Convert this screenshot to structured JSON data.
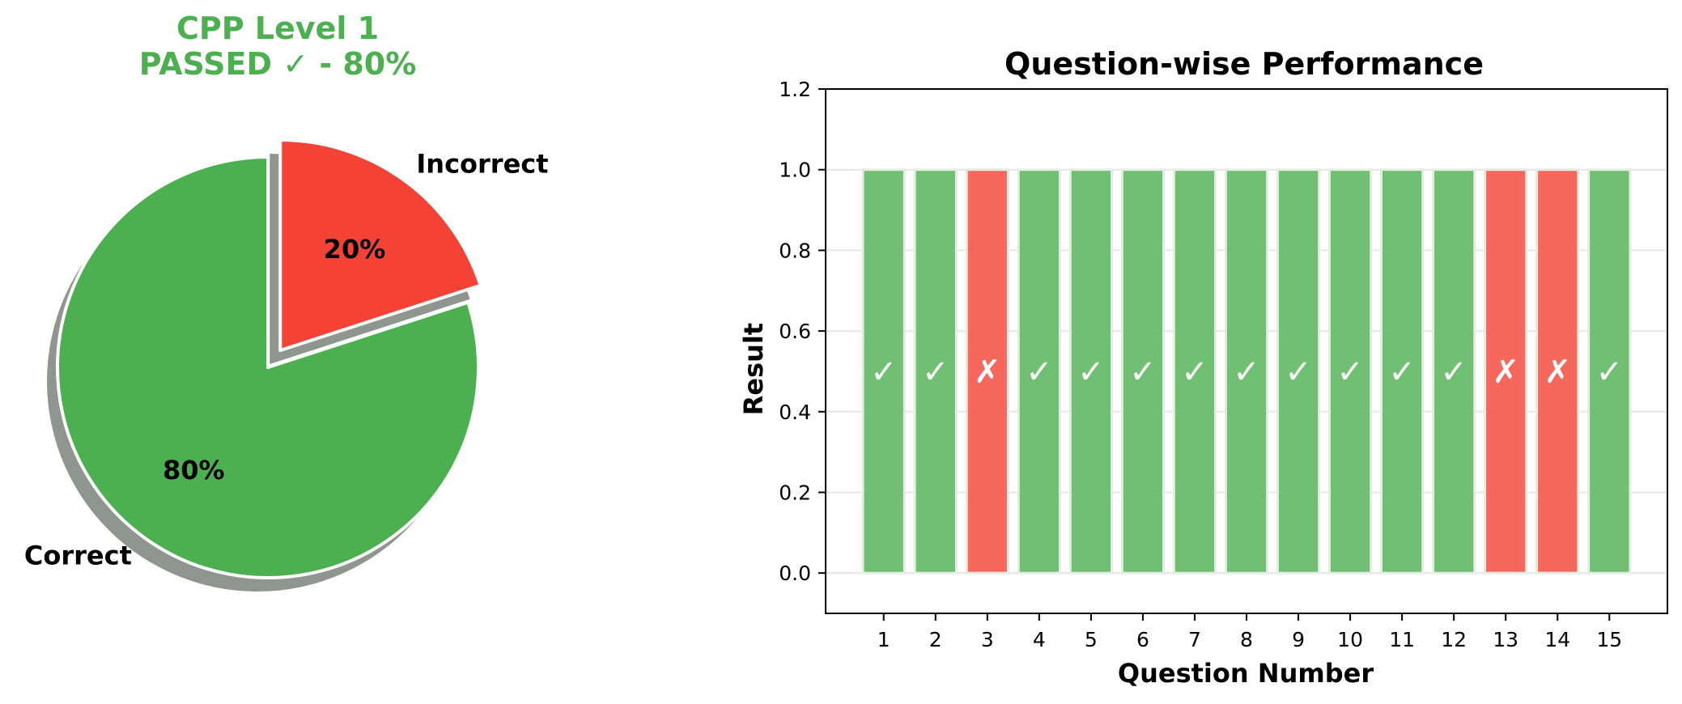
{
  "colors": {
    "correct": "#4caf50",
    "incorrect": "#f44336",
    "bar_correct": "#71bf72",
    "bar_incorrect": "#f6675d",
    "pass_title": "#4caf50",
    "shadow": "#8f9690",
    "grid": "#e6e6e6"
  },
  "chart_data": [
    {
      "type": "pie",
      "title_line1": "CPP Level 1",
      "title_line2": "PASSED ✓ - 80%",
      "slices": [
        {
          "label": "Correct",
          "value": 80,
          "pct_label": "80%",
          "exploded": false
        },
        {
          "label": "Incorrect",
          "value": 20,
          "pct_label": "20%",
          "exploded": true
        }
      ],
      "start_angle_deg": 90,
      "direction": "counterclockwise",
      "shadow": true
    },
    {
      "type": "bar",
      "title": "Question-wise Performance",
      "xlabel": "Question Number",
      "ylabel": "Result",
      "ylim": [
        -0.1,
        1.2
      ],
      "yticks": [
        0.0,
        0.2,
        0.4,
        0.6,
        0.8,
        1.0,
        1.2
      ],
      "ytick_labels": [
        "0.0",
        "0.2",
        "0.4",
        "0.6",
        "0.8",
        "1.0",
        "1.2"
      ],
      "categories": [
        "1",
        "2",
        "3",
        "4",
        "5",
        "6",
        "7",
        "8",
        "9",
        "10",
        "11",
        "12",
        "13",
        "14",
        "15"
      ],
      "values": [
        1,
        1,
        1,
        1,
        1,
        1,
        1,
        1,
        1,
        1,
        1,
        1,
        1,
        1,
        1
      ],
      "correct": [
        true,
        true,
        false,
        true,
        true,
        true,
        true,
        true,
        true,
        true,
        true,
        true,
        false,
        false,
        true
      ],
      "mark_correct": "✓",
      "mark_incorrect": "✗",
      "grid": "y"
    }
  ]
}
